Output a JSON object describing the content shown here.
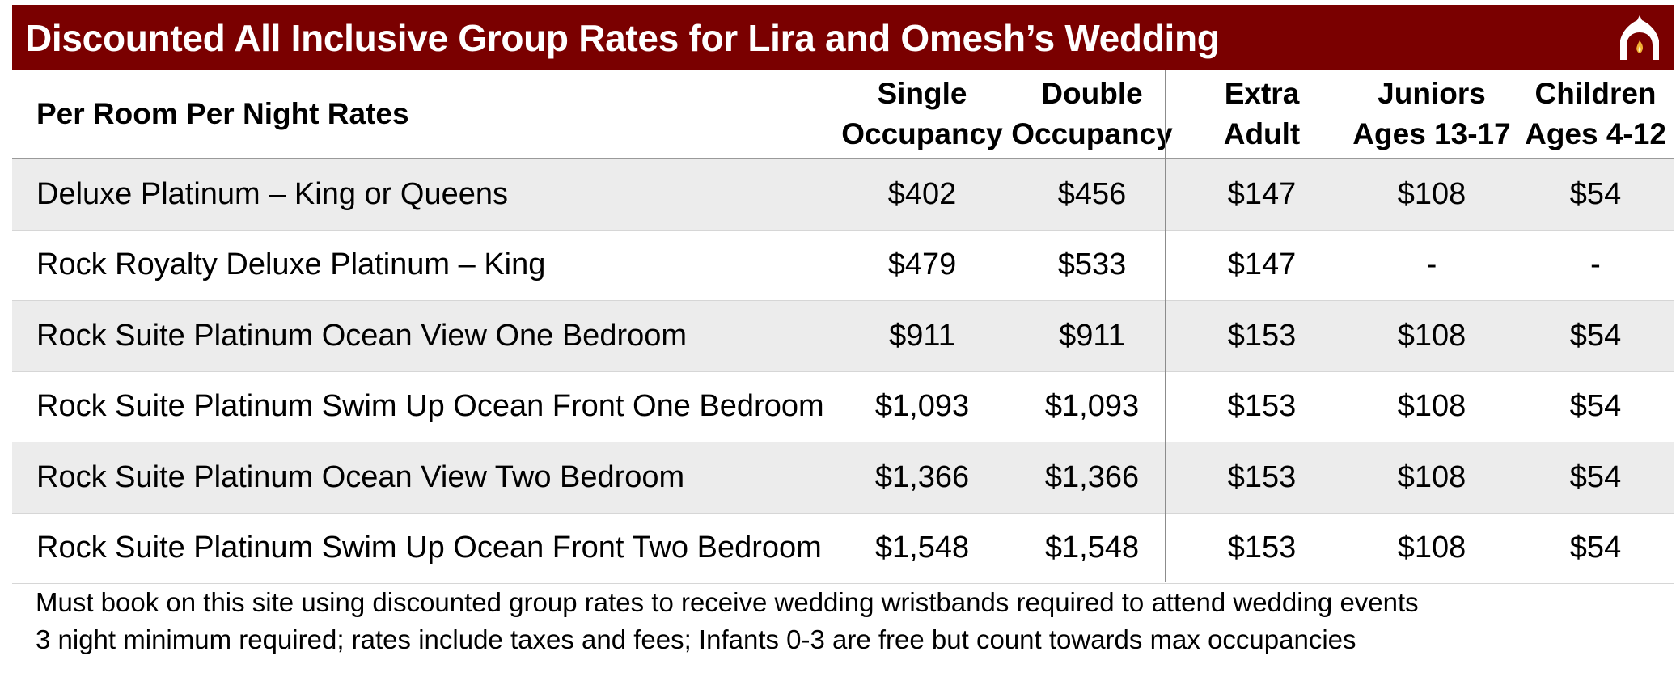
{
  "banner": {
    "title": "Discounted All Inclusive Group Rates for Lira and Omesh’s Wedding",
    "logo_icon": "temple-arch-flame-icon",
    "background": "#7a0000"
  },
  "table": {
    "headers": {
      "label": "Per Room Per Night Rates",
      "single": [
        "Single",
        "Occupancy"
      ],
      "double": [
        "Double",
        "Occupancy"
      ],
      "extra_adult": [
        "Extra",
        "Adult"
      ],
      "juniors": [
        "Juniors",
        "Ages 13-17"
      ],
      "children": [
        "Children",
        "Ages 4-12"
      ]
    },
    "rows": [
      {
        "name": "Deluxe Platinum – King or Queens",
        "single": "$402",
        "double": "$456",
        "extra_adult": "$147",
        "juniors": "$108",
        "children": "$54"
      },
      {
        "name": "Rock Royalty Deluxe Platinum – King",
        "single": "$479",
        "double": "$533",
        "extra_adult": "$147",
        "juniors": "-",
        "children": "-"
      },
      {
        "name": "Rock Suite Platinum Ocean View One Bedroom",
        "single": "$911",
        "double": "$911",
        "extra_adult": "$153",
        "juniors": "$108",
        "children": "$54"
      },
      {
        "name": "Rock Suite Platinum Swim Up Ocean Front One Bedroom",
        "single": "$1,093",
        "double": "$1,093",
        "extra_adult": "$153",
        "juniors": "$108",
        "children": "$54"
      },
      {
        "name": "Rock Suite Platinum Ocean View Two Bedroom",
        "single": "$1,366",
        "double": "$1,366",
        "extra_adult": "$153",
        "juniors": "$108",
        "children": "$54"
      },
      {
        "name": "Rock Suite Platinum Swim Up Ocean Front Two Bedroom",
        "single": "$1,548",
        "double": "$1,548",
        "extra_adult": "$153",
        "juniors": "$108",
        "children": "$54"
      }
    ]
  },
  "notes": [
    "Must book on this site using discounted group rates to receive wedding wristbands required to attend wedding events",
    "3 night minimum required; rates include taxes and fees; Infants 0-3 are free but count towards max occupancies"
  ]
}
